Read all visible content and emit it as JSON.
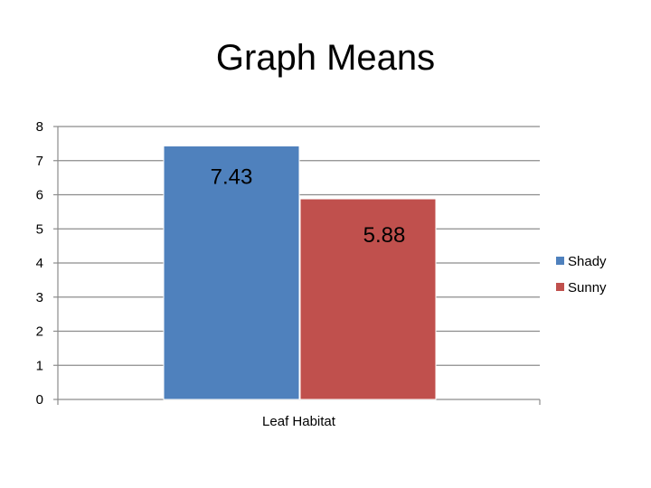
{
  "chart_data": {
    "type": "bar",
    "title": "Graph Means",
    "categories": [
      "Leaf Habitat"
    ],
    "series": [
      {
        "name": "Shady",
        "values": [
          7.43
        ],
        "color": "#4f81bd"
      },
      {
        "name": "Sunny",
        "values": [
          5.88
        ],
        "color": "#c0504d"
      }
    ],
    "data_labels": [
      "7.43",
      "5.88"
    ],
    "xlabel": "",
    "ylabel": "",
    "ylim": [
      0,
      8
    ],
    "yticks": [
      0,
      1,
      2,
      3,
      4,
      5,
      6,
      7,
      8
    ],
    "grid": true,
    "legend": "right"
  }
}
